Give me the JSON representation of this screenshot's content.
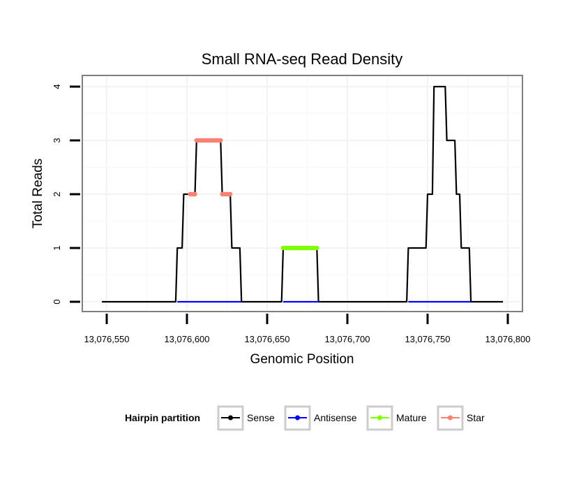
{
  "chart_data": {
    "type": "line",
    "title": "Small RNA-seq Read Density",
    "xlabel": "Genomic Position",
    "ylabel": "Total Reads",
    "xlim": [
      13076545,
      13076800
    ],
    "ylim": [
      -0.2,
      4.2
    ],
    "xticks": [
      13076550,
      13076600,
      13076650,
      13076700,
      13076750,
      13076800
    ],
    "xtick_labels": [
      "13,076,550",
      "13,076,600",
      "13,076,650",
      "13,076,700",
      "13,076,750",
      "13,076,800"
    ],
    "yticks": [
      0,
      1,
      2,
      3,
      4
    ],
    "ytick_labels": [
      "0",
      "1",
      "2",
      "3",
      "4"
    ],
    "grid": true,
    "legend": {
      "title": "Hairpin partition",
      "position": "bottom",
      "entries": [
        {
          "name": "Sense",
          "color": "#000000"
        },
        {
          "name": "Antisense",
          "color": "#0000ff"
        },
        {
          "name": "Mature",
          "color": "#7fff00"
        },
        {
          "name": "Star",
          "color": "#fa8072"
        }
      ]
    },
    "series": [
      {
        "name": "Sense",
        "color": "#000000",
        "style": "line",
        "x": [
          13076547,
          13076593,
          13076594,
          13076597,
          13076598,
          13076601,
          13076602,
          13076605,
          13076606,
          13076621,
          13076622,
          13076627,
          13076628,
          13076633,
          13076634,
          13076659,
          13076660,
          13076681,
          13076682,
          13076737,
          13076738,
          13076749,
          13076750,
          13076753,
          13076754,
          13076761,
          13076762,
          13076767,
          13076768,
          13076770,
          13076771,
          13076776,
          13076777,
          13076797
        ],
        "y": [
          0,
          0,
          1,
          1,
          2,
          2,
          2,
          2,
          3,
          3,
          2,
          2,
          1,
          1,
          0,
          0,
          1,
          1,
          0,
          0,
          1,
          1,
          2,
          2,
          4,
          4,
          3,
          3,
          2,
          2,
          1,
          1,
          0,
          0
        ]
      },
      {
        "name": "Antisense",
        "color": "#0000ff",
        "style": "line",
        "x": [
          13076594,
          13076634,
          13076660,
          13076682,
          13076738,
          13076777
        ],
        "y": [
          0,
          0,
          0,
          0,
          0,
          0
        ],
        "segments": [
          [
            0,
            1
          ],
          [
            2,
            3
          ],
          [
            4,
            5
          ]
        ]
      },
      {
        "name": "Mature",
        "color": "#7fff00",
        "style": "points",
        "x": [
          13076660,
          13076661,
          13076662,
          13076663,
          13076664,
          13076665,
          13076666,
          13076667,
          13076668,
          13076669,
          13076670,
          13076671,
          13076672,
          13076673,
          13076674,
          13076675,
          13076676,
          13076677,
          13076678,
          13076679,
          13076680,
          13076681
        ],
        "y": [
          1,
          1,
          1,
          1,
          1,
          1,
          1,
          1,
          1,
          1,
          1,
          1,
          1,
          1,
          1,
          1,
          1,
          1,
          1,
          1,
          1,
          1
        ]
      },
      {
        "name": "Star",
        "color": "#fa8072",
        "style": "points",
        "x": [
          13076602,
          13076603,
          13076604,
          13076605,
          13076606,
          13076607,
          13076608,
          13076609,
          13076610,
          13076611,
          13076612,
          13076613,
          13076614,
          13076615,
          13076616,
          13076617,
          13076618,
          13076619,
          13076620,
          13076621,
          13076622,
          13076623,
          13076624,
          13076625,
          13076626,
          13076627
        ],
        "y": [
          2,
          2,
          2,
          2,
          3,
          3,
          3,
          3,
          3,
          3,
          3,
          3,
          3,
          3,
          3,
          3,
          3,
          3,
          3,
          3,
          2,
          2,
          2,
          2,
          2,
          2
        ]
      }
    ]
  }
}
